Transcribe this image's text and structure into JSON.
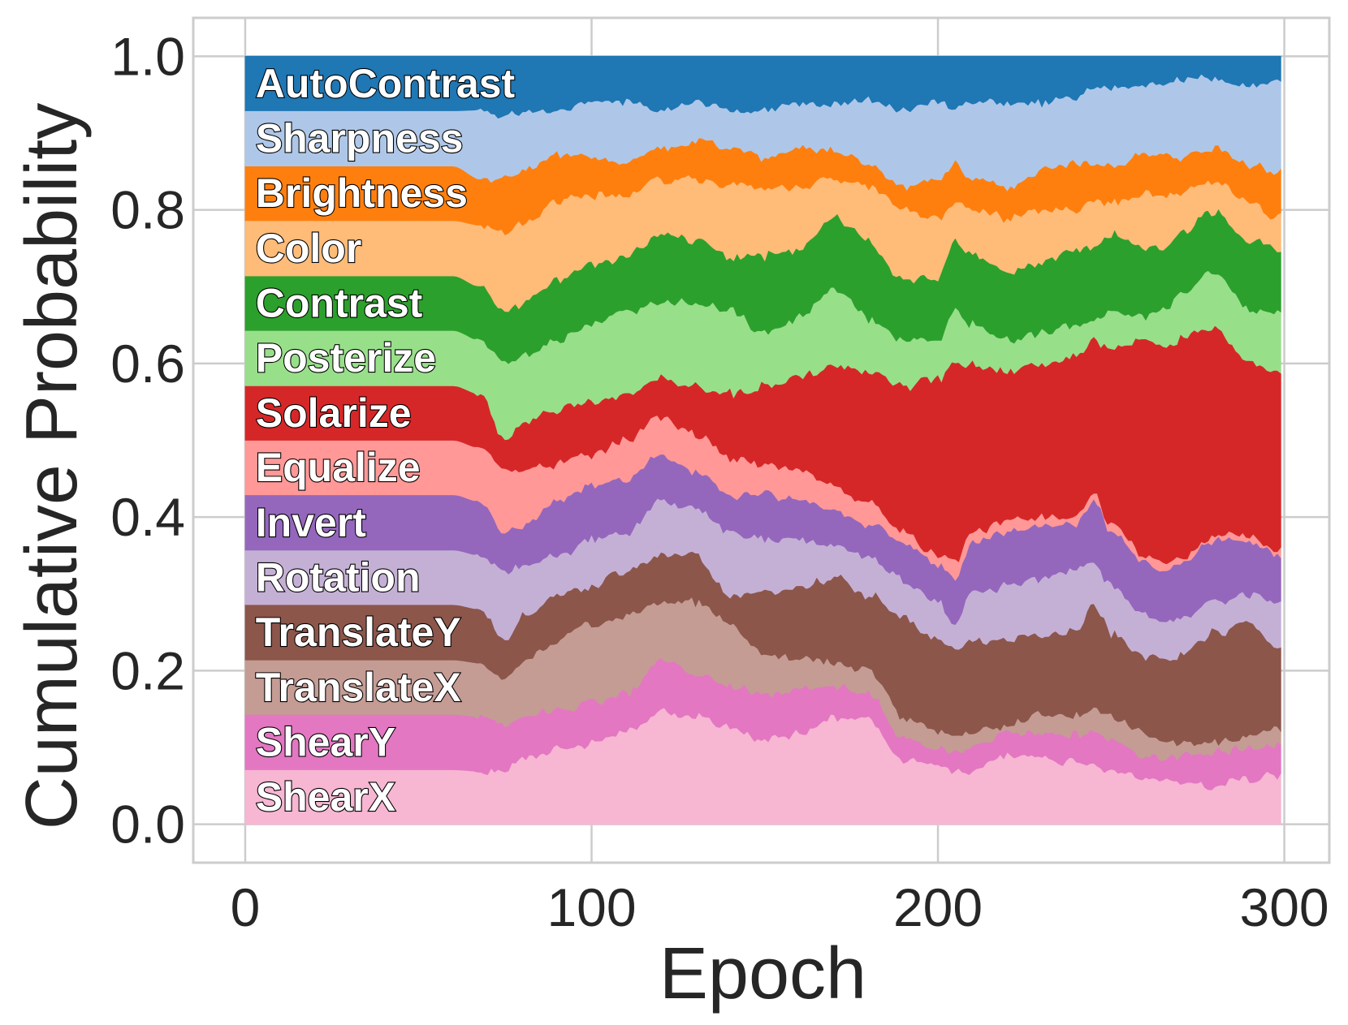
{
  "chart_data": {
    "type": "area",
    "stacked": true,
    "title": "",
    "xlabel": "Epoch",
    "ylabel": "Cumulative Probability",
    "xlim": [
      -15,
      313
    ],
    "ylim": [
      -0.05,
      1.05
    ],
    "xticks": [
      0,
      100,
      200,
      300
    ],
    "yticks": [
      "0.0",
      "0.2",
      "0.4",
      "0.6",
      "0.8",
      "1.0"
    ],
    "grid": true,
    "x_range": [
      0,
      299
    ],
    "knots": [
      0,
      60,
      68,
      75,
      80,
      90,
      100,
      110,
      120,
      130,
      140,
      150,
      160,
      170,
      180,
      190,
      200,
      205,
      210,
      220,
      230,
      240,
      245,
      250,
      260,
      265,
      270,
      280,
      290,
      299
    ],
    "series": [
      {
        "name": "ShearX",
        "color": "#f7b6d2",
        "boundary": [
          0.071,
          0.071,
          0.069,
          0.07,
          0.085,
          0.095,
          0.105,
          0.12,
          0.15,
          0.14,
          0.125,
          0.11,
          0.12,
          0.14,
          0.135,
          0.085,
          0.08,
          0.07,
          0.07,
          0.09,
          0.085,
          0.08,
          0.075,
          0.07,
          0.06,
          0.055,
          0.055,
          0.05,
          0.06,
          0.065
        ]
      },
      {
        "name": "ShearY",
        "color": "#e377c2",
        "boundary": [
          0.143,
          0.143,
          0.14,
          0.13,
          0.14,
          0.15,
          0.16,
          0.17,
          0.215,
          0.2,
          0.18,
          0.17,
          0.18,
          0.18,
          0.17,
          0.11,
          0.1,
          0.095,
          0.1,
          0.12,
          0.12,
          0.115,
          0.12,
          0.11,
          0.09,
          0.085,
          0.09,
          0.095,
          0.1,
          0.105
        ]
      },
      {
        "name": "TranslateX",
        "color": "#c49c94",
        "boundary": [
          0.214,
          0.214,
          0.21,
          0.19,
          0.21,
          0.24,
          0.26,
          0.27,
          0.29,
          0.29,
          0.26,
          0.22,
          0.22,
          0.21,
          0.2,
          0.14,
          0.12,
          0.115,
          0.12,
          0.13,
          0.145,
          0.14,
          0.15,
          0.14,
          0.12,
          0.11,
          0.105,
          0.105,
          0.115,
          0.125
        ]
      },
      {
        "name": "TranslateY",
        "color": "#8c564b",
        "boundary": [
          0.286,
          0.286,
          0.28,
          0.24,
          0.27,
          0.3,
          0.31,
          0.33,
          0.35,
          0.35,
          0.3,
          0.3,
          0.31,
          0.32,
          0.3,
          0.27,
          0.24,
          0.23,
          0.24,
          0.24,
          0.245,
          0.25,
          0.29,
          0.25,
          0.22,
          0.215,
          0.22,
          0.25,
          0.26,
          0.23
        ]
      },
      {
        "name": "Rotation",
        "color": "#c5b0d5",
        "boundary": [
          0.357,
          0.357,
          0.35,
          0.33,
          0.34,
          0.35,
          0.37,
          0.38,
          0.42,
          0.41,
          0.38,
          0.37,
          0.37,
          0.36,
          0.35,
          0.32,
          0.29,
          0.26,
          0.3,
          0.31,
          0.32,
          0.33,
          0.34,
          0.31,
          0.27,
          0.26,
          0.27,
          0.29,
          0.3,
          0.29
        ]
      },
      {
        "name": "Invert",
        "color": "#9467bd",
        "boundary": [
          0.429,
          0.429,
          0.42,
          0.38,
          0.39,
          0.42,
          0.44,
          0.45,
          0.48,
          0.46,
          0.43,
          0.43,
          0.42,
          0.41,
          0.39,
          0.37,
          0.34,
          0.32,
          0.37,
          0.38,
          0.39,
          0.39,
          0.42,
          0.38,
          0.34,
          0.33,
          0.34,
          0.37,
          0.37,
          0.35
        ]
      },
      {
        "name": "Equalize",
        "color": "#ff9896",
        "boundary": [
          0.5,
          0.5,
          0.49,
          0.46,
          0.46,
          0.47,
          0.48,
          0.5,
          0.53,
          0.51,
          0.48,
          0.47,
          0.46,
          0.44,
          0.42,
          0.38,
          0.35,
          0.34,
          0.38,
          0.395,
          0.4,
          0.4,
          0.43,
          0.39,
          0.35,
          0.34,
          0.345,
          0.375,
          0.375,
          0.355
        ]
      },
      {
        "name": "Solarize",
        "color": "#d62728",
        "boundary": [
          0.571,
          0.571,
          0.56,
          0.5,
          0.52,
          0.54,
          0.55,
          0.56,
          0.58,
          0.57,
          0.56,
          0.57,
          0.58,
          0.6,
          0.59,
          0.57,
          0.58,
          0.6,
          0.6,
          0.59,
          0.6,
          0.61,
          0.63,
          0.62,
          0.63,
          0.62,
          0.63,
          0.65,
          0.6,
          0.59
        ]
      },
      {
        "name": "Posterize",
        "color": "#98df8a",
        "boundary": [
          0.643,
          0.643,
          0.63,
          0.6,
          0.61,
          0.63,
          0.65,
          0.67,
          0.68,
          0.68,
          0.67,
          0.64,
          0.66,
          0.7,
          0.66,
          0.63,
          0.63,
          0.67,
          0.65,
          0.63,
          0.64,
          0.65,
          0.66,
          0.67,
          0.66,
          0.67,
          0.69,
          0.72,
          0.67,
          0.67
        ]
      },
      {
        "name": "Contrast",
        "color": "#2ca02c",
        "boundary": [
          0.714,
          0.714,
          0.7,
          0.67,
          0.68,
          0.71,
          0.73,
          0.74,
          0.77,
          0.76,
          0.74,
          0.74,
          0.75,
          0.79,
          0.76,
          0.71,
          0.71,
          0.76,
          0.74,
          0.72,
          0.73,
          0.75,
          0.75,
          0.77,
          0.75,
          0.75,
          0.77,
          0.8,
          0.76,
          0.75
        ]
      },
      {
        "name": "Color",
        "color": "#ffbb78",
        "boundary": [
          0.786,
          0.786,
          0.78,
          0.77,
          0.78,
          0.81,
          0.82,
          0.82,
          0.84,
          0.84,
          0.83,
          0.83,
          0.83,
          0.84,
          0.83,
          0.8,
          0.79,
          0.81,
          0.8,
          0.79,
          0.8,
          0.8,
          0.81,
          0.81,
          0.82,
          0.82,
          0.82,
          0.84,
          0.81,
          0.79
        ]
      },
      {
        "name": "Brightness",
        "color": "#ff7f0e",
        "boundary": [
          0.857,
          0.857,
          0.84,
          0.84,
          0.85,
          0.87,
          0.87,
          0.86,
          0.88,
          0.89,
          0.88,
          0.87,
          0.88,
          0.88,
          0.86,
          0.83,
          0.84,
          0.86,
          0.84,
          0.83,
          0.85,
          0.86,
          0.86,
          0.86,
          0.87,
          0.87,
          0.87,
          0.88,
          0.86,
          0.85
        ]
      },
      {
        "name": "Sharpness",
        "color": "#aec7e8",
        "boundary": [
          0.929,
          0.929,
          0.93,
          0.92,
          0.93,
          0.93,
          0.94,
          0.94,
          0.93,
          0.94,
          0.93,
          0.93,
          0.94,
          0.94,
          0.94,
          0.93,
          0.94,
          0.93,
          0.94,
          0.94,
          0.94,
          0.95,
          0.96,
          0.96,
          0.965,
          0.965,
          0.97,
          0.97,
          0.965,
          0.965
        ]
      },
      {
        "name": "AutoContrast",
        "color": "#1f77b4",
        "boundary": [
          1.0,
          1.0,
          1.0,
          1.0,
          1.0,
          1.0,
          1.0,
          1.0,
          1.0,
          1.0,
          1.0,
          1.0,
          1.0,
          1.0,
          1.0,
          1.0,
          1.0,
          1.0,
          1.0,
          1.0,
          1.0,
          1.0,
          1.0,
          1.0,
          1.0,
          1.0,
          1.0,
          1.0,
          1.0,
          1.0
        ]
      }
    ]
  }
}
